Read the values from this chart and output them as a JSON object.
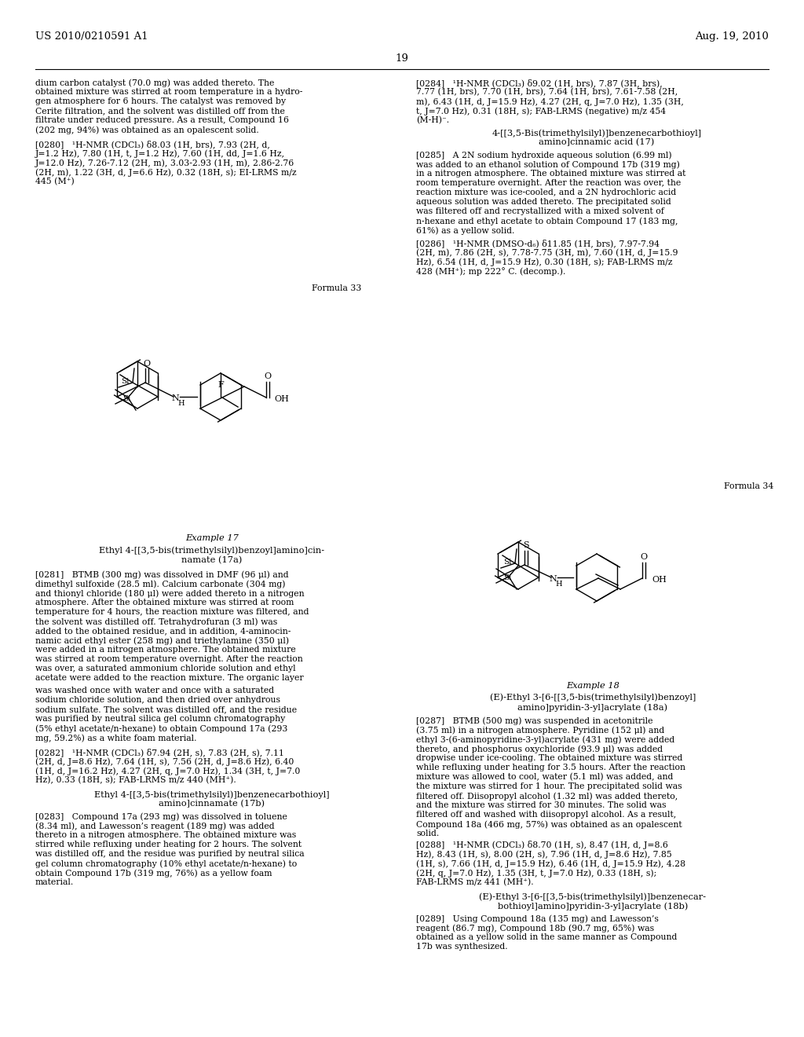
{
  "page_background": "#ffffff",
  "header_left": "US 2010/0210591 A1",
  "header_right": "Aug. 19, 2010",
  "page_number": "19",
  "left_col_texts": [
    [
      "dium carbon catalyst (70.0 mg) was added thereto. The",
      100
    ],
    [
      "obtained mixture was stirred at room temperature in a hydro-",
      112
    ],
    [
      "gen atmosphere for 6 hours. The catalyst was removed by",
      124
    ],
    [
      "Cerite filtration, and the solvent was distilled off from the",
      136
    ],
    [
      "filtrate under reduced pressure. As a result, Compound 16",
      148
    ],
    [
      "(202 mg, 94%) was obtained as an opalescent solid.",
      160
    ],
    [
      "[0280]   ¹H-NMR (CDCl₃) δ8.03 (1H, brs), 7.93 (2H, d,",
      178
    ],
    [
      "J=1.2 Hz), 7.80 (1H, t, J=1.2 Hz), 7.60 (1H, dd, J=1.6 Hz,",
      190
    ],
    [
      "J=12.0 Hz), 7.26-7.12 (2H, m), 3.03-2.93 (1H, m), 2.86-2.76",
      202
    ],
    [
      "(2H, m), 1.22 (3H, d, J=6.6 Hz), 0.32 (18H, s); EI-LRMS m/z",
      214
    ],
    [
      "445 (M⁺)",
      226
    ]
  ],
  "right_col_texts_top": [
    [
      "[0284]   ¹H-NMR (CDCl₃) δ9.02 (1H, brs), 7.87 (3H, brs),",
      100
    ],
    [
      "7.77 (1H, brs), 7.70 (1H, brs), 7.64 (1H, brs), 7.61-7.58 (2H,",
      112
    ],
    [
      "m), 6.43 (1H, d, J=15.9 Hz), 4.27 (2H, q, J=7.0 Hz), 1.35 (3H,",
      124
    ],
    [
      "t, J=7.0 Hz), 0.31 (18H, s); FAB-LRMS (negative) m/z 454",
      136
    ],
    [
      "(M-H)⁻.",
      148
    ]
  ],
  "right_heading1a": [
    "4-[[3,5-Bis(trimethylsilyl)]benzenecarbothioyl]",
    164
  ],
  "right_heading1b": [
    "amino]cinnamic acid (17)",
    176
  ],
  "right_col_texts_mid": [
    [
      "[0285]   A 2N sodium hydroxide aqueous solution (6.99 ml)",
      192
    ],
    [
      "was added to an ethanol solution of Compound 17b (319 mg)",
      204
    ],
    [
      "in a nitrogen atmosphere. The obtained mixture was stirred at",
      216
    ],
    [
      "room temperature overnight. After the reaction was over, the",
      228
    ],
    [
      "reaction mixture was ice-cooled, and a 2N hydrochloric acid",
      240
    ],
    [
      "aqueous solution was added thereto. The precipitated solid",
      252
    ],
    [
      "was filtered off and recrystallized with a mixed solvent of",
      264
    ],
    [
      "n-hexane and ethyl acetate to obtain Compound 17 (183 mg,",
      276
    ],
    [
      "61%) as a yellow solid.",
      288
    ],
    [
      "[0286]   ¹H-NMR (DMSO-d₆) δ11.85 (1H, brs), 7.97-7.94",
      304
    ],
    [
      "(2H, m), 7.86 (2H, s), 7.78-7.75 (3H, m), 7.60 (1H, d, J=15.9",
      316
    ],
    [
      "Hz), 6.54 (1H, d, J=15.9 Hz), 0.30 (18H, s); FAB-LRMS m/z",
      328
    ],
    [
      "428 (MH⁺); mp 222° C. (decomp.).",
      340
    ]
  ],
  "formula33_label": [
    "Formula 33",
    362,
    460
  ],
  "formula34_label": [
    "Formula 34",
    614,
    985
  ],
  "example17_heading": [
    "Example 17",
    680,
    270
  ],
  "example17_sub1": [
    "Ethyl 4-[[3,5-bis(trimethylsilyl)benzoyl]amino]cin-",
    695,
    270
  ],
  "example17_sub2": [
    "namate (17a)",
    708,
    270
  ],
  "left_col_texts2": [
    [
      "[0281]   BTMB (300 mg) was dissolved in DMF (96 μl) and",
      726
    ],
    [
      "dimethyl sulfoxide (28.5 ml). Calcium carbonate (304 mg)",
      738
    ],
    [
      "and thionyl chloride (180 μl) were added thereto in a nitrogen",
      750
    ],
    [
      "atmosphere. After the obtained mixture was stirred at room",
      762
    ],
    [
      "temperature for 4 hours, the reaction mixture was filtered, and",
      774
    ],
    [
      "the solvent was distilled off. Tetrahydrofuran (3 ml) was",
      786
    ],
    [
      "added to the obtained residue, and in addition, 4-aminocin-",
      798
    ],
    [
      "namic acid ethyl ester (258 mg) and triethylamine (350 μl)",
      810
    ],
    [
      "were added in a nitrogen atmosphere. The obtained mixture",
      822
    ],
    [
      "was stirred at room temperature overnight. After the reaction",
      834
    ],
    [
      "was over, a saturated ammonium chloride solution and ethyl",
      846
    ],
    [
      "acetate were added to the reaction mixture. The organic layer",
      858
    ]
  ],
  "example18_heading": [
    "Example 18",
    868,
    755
  ],
  "example18_sub1": [
    "(E)-Ethyl 3-[6-[[3,5-bis(trimethylsilyl)benzoyl]",
    882,
    755
  ],
  "example18_sub2": [
    "amino]pyridin-3-yl]acrylate (18a)",
    895,
    755
  ],
  "right_col_texts_287": [
    [
      "[0287]   BTMB (500 mg) was suspended in acetonitrile",
      912
    ],
    [
      "(3.75 ml) in a nitrogen atmosphere. Pyridine (152 μl) and",
      924
    ],
    [
      "ethyl 3-(6-aminopyridine-3-yl)acrylate (431 mg) were added",
      936
    ],
    [
      "thereto, and phosphorus oxychloride (93.9 μl) was added",
      948
    ],
    [
      "dropwise under ice-cooling. The obtained mixture was stirred",
      960
    ],
    [
      "while refluxing under heating for 3.5 hours. After the reaction",
      972
    ],
    [
      "mixture was allowed to cool, water (5.1 ml) was added, and",
      984
    ],
    [
      "the mixture was stirred for 1 hour. The precipitated solid was",
      996
    ],
    [
      "filtered off. Diisopropyl alcohol (1.32 ml) was added thereto,",
      1008
    ],
    [
      "and the mixture was stirred for 30 minutes. The solid was",
      1020
    ],
    [
      "filtered off and washed with diisopropyl alcohol. As a result,",
      1032
    ],
    [
      "Compound 18a (466 mg, 57%) was obtained as an opalescent",
      1044
    ],
    [
      "solid.",
      1056
    ]
  ],
  "left_col_texts3": [
    [
      "was washed once with water and once with a saturated",
      874
    ],
    [
      "sodium chloride solution, and then dried over anhydrous",
      886
    ],
    [
      "sodium sulfate. The solvent was distilled off, and the residue",
      898
    ],
    [
      "was purified by neutral silica gel column chromatography",
      910
    ],
    [
      "(5% ethyl acetate/n-hexane) to obtain Compound 17a (293",
      922
    ],
    [
      "mg, 59.2%) as a white foam material.",
      934
    ],
    [
      "[0282]   ¹H-NMR (CDCl₃) δ7.94 (2H, s), 7.83 (2H, s), 7.11",
      952
    ],
    [
      "(2H, d, J=8.6 Hz), 7.64 (1H, s), 7.56 (2H, d, J=8.6 Hz), 6.40",
      964
    ],
    [
      "(1H, d, J=16.2 Hz), 4.27 (2H, q, J=7.0 Hz), 1.34 (3H, t, J=7.0",
      976
    ],
    [
      "Hz), 0.33 (18H, s); FAB-LRMS m/z 440 (MH⁺).",
      988
    ]
  ],
  "left_heading2a": [
    "Ethyl 4-[[3,5-bis(trimethylsilyl)]benzenecarbothioyl]",
    1006,
    270
  ],
  "left_heading2b": [
    "amino]cinnamate (17b)",
    1018,
    270
  ],
  "left_col_texts4": [
    [
      "[0283]   Compound 17a (293 mg) was dissolved in toluene",
      1034
    ],
    [
      "(8.34 ml), and Lawesson’s reagent (189 mg) was added",
      1046
    ],
    [
      "thereto in a nitrogen atmosphere. The obtained mixture was",
      1058
    ],
    [
      "stirred while refluxing under heating for 2 hours. The solvent",
      1070
    ],
    [
      "was distilled off, and the residue was purified by neutral silica",
      1082
    ],
    [
      "gel column chromatography (10% ethyl acetate/n-hexane) to",
      1094
    ],
    [
      "obtain Compound 17b (319 mg, 76%) as a yellow foam",
      1106
    ],
    [
      "material.",
      1118
    ]
  ],
  "right_col_texts_288": [
    [
      "[0288]   ¹H-NMR (CDCl₃) δ8.70 (1H, s), 8.47 (1H, d, J=8.6",
      1070
    ],
    [
      "Hz), 8.43 (1H, s), 8.00 (2H, s), 7.96 (1H, d, J=8.6 Hz), 7.85",
      1082
    ],
    [
      "(1H, s), 7.66 (1H, d, J=15.9 Hz), 6.46 (1H, d, J=15.9 Hz), 4.28",
      1094
    ],
    [
      "(2H, q, J=7.0 Hz), 1.35 (3H, t, J=7.0 Hz), 0.33 (18H, s);",
      1106
    ],
    [
      "FAB-LRMS m/z 441 (MH⁺).",
      1118
    ]
  ],
  "right_heading2a": [
    "(E)-Ethyl 3-[6-[[3,5-bis(trimethylsilyl)]benzenecar-",
    1136,
    755
  ],
  "right_heading2b": [
    "bothioyl]amino]pyridin-3-yl]acrylate (18b)",
    1148,
    755
  ],
  "right_col_texts_289": [
    [
      "[0289]   Using Compound 18a (135 mg) and Lawesson’s",
      1164
    ],
    [
      "reagent (86.7 mg), Compound 18b (90.7 mg, 65%) was",
      1176
    ],
    [
      "obtained as a yellow solid in the same manner as Compound",
      1188
    ],
    [
      "17b was synthesized.",
      1200
    ]
  ]
}
